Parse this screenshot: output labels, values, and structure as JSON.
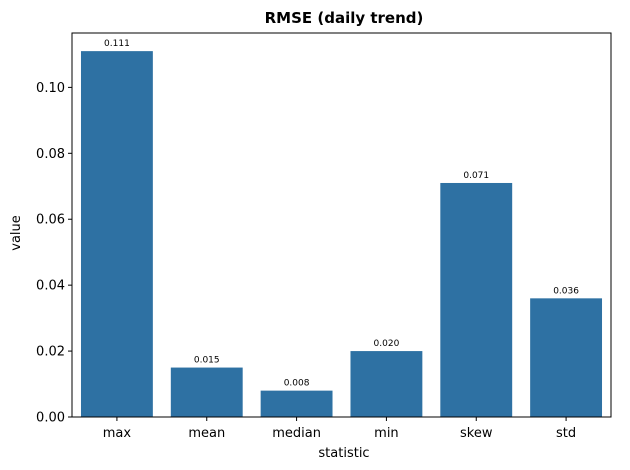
{
  "chart_data": {
    "type": "bar",
    "title": "RMSE (daily trend)",
    "xlabel": "statistic",
    "ylabel": "value",
    "categories": [
      "max",
      "mean",
      "median",
      "min",
      "skew",
      "std"
    ],
    "values": [
      0.111,
      0.015,
      0.008,
      0.02,
      0.071,
      0.036
    ],
    "data_labels": [
      "0.111",
      "0.015",
      "0.008",
      "0.020",
      "0.071",
      "0.036"
    ],
    "ylim": [
      0,
      0.1165
    ],
    "yticks": [
      0.0,
      0.02,
      0.04,
      0.06,
      0.08,
      0.1
    ],
    "ytick_labels": [
      "0.00",
      "0.02",
      "0.04",
      "0.06",
      "0.08",
      "0.10"
    ],
    "bar_color": "#2e71a3",
    "grid": false,
    "legend": "none"
  }
}
